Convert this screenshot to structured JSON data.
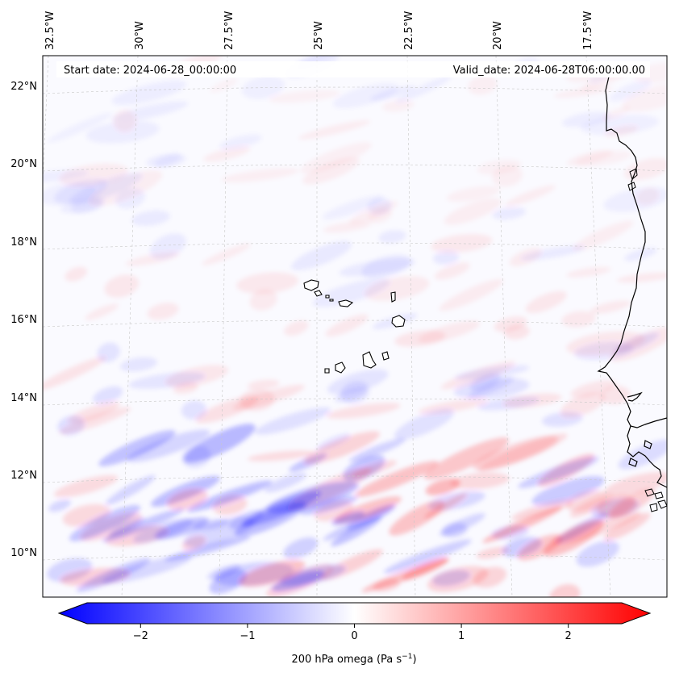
{
  "map": {
    "start_label": "Start date: 2024-06-28_00:00:00",
    "valid_label": "Valid_date: 2024-06-28T06:00:00.00",
    "lon_labels": [
      "32.5°W",
      "30°W",
      "27.5°W",
      "25°W",
      "22.5°W",
      "20°W",
      "17.5°W"
    ],
    "lat_labels": [
      "22°N",
      "20°N",
      "18°N",
      "16°N",
      "14°N",
      "12°N",
      "10°N"
    ],
    "gridlines": true,
    "field_colors": {
      "negative": "#0000ff",
      "zero": "#ffffff",
      "positive": "#ff0000"
    },
    "coastline_color": "#000000"
  },
  "colorbar": {
    "ticks": [
      "−2",
      "−1",
      "0",
      "1",
      "2"
    ],
    "tick_values": [
      -2,
      -1,
      0,
      1,
      2
    ],
    "range": [
      -2.5,
      2.5
    ],
    "extend": "both",
    "label_main": "200 hPa omega (Pa s",
    "label_sup": "−1",
    "label_end": ")"
  }
}
